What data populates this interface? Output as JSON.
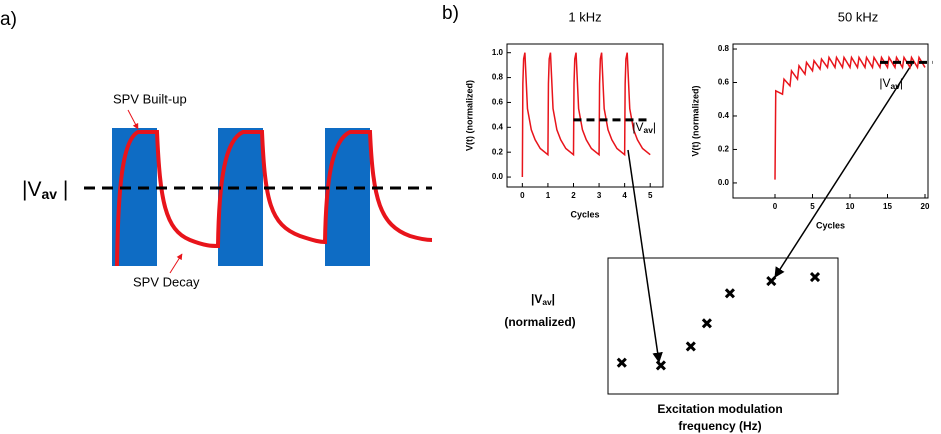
{
  "panel_a": {
    "label": "a)",
    "built_up": "SPV Built-up",
    "decay": "SPV Decay",
    "vav": {
      "text": "|V",
      "sub": "av",
      "end": " |"
    }
  },
  "panel_b_label": "b)",
  "chart_data": [
    {
      "type": "line",
      "title": "1 kHz",
      "x_label": "Cycles",
      "y_label": "V(t) (normalized)",
      "color": "#e8141b",
      "x": [
        0,
        0.02,
        0.05,
        0.1,
        0.2,
        0.35,
        0.5,
        0.7,
        1,
        1.02,
        1.05,
        1.1,
        1.2,
        1.35,
        1.5,
        1.7,
        2,
        2.02,
        2.05,
        2.1,
        2.2,
        2.35,
        2.5,
        2.7,
        3,
        3.02,
        3.05,
        3.1,
        3.2,
        3.35,
        3.5,
        3.7,
        4,
        4.02,
        4.05,
        4.1,
        4.2,
        4.35,
        4.5,
        4.7,
        5
      ],
      "values": [
        0,
        0.75,
        0.95,
        1.0,
        0.55,
        0.38,
        0.3,
        0.23,
        0.18,
        0.75,
        0.95,
        1.0,
        0.55,
        0.38,
        0.3,
        0.23,
        0.18,
        0.75,
        0.95,
        1.0,
        0.55,
        0.38,
        0.3,
        0.23,
        0.18,
        0.75,
        0.95,
        1.0,
        0.55,
        0.38,
        0.3,
        0.23,
        0.18,
        0.75,
        0.95,
        1.0,
        0.55,
        0.38,
        0.3,
        0.23,
        0.18
      ],
      "xlim": [
        -0.6,
        5.5
      ],
      "xticks": [
        0,
        1,
        2,
        3,
        4,
        5
      ],
      "ylim": [
        -0.08,
        1.07
      ],
      "yticks": [
        {
          "value": 0,
          "label": "0.0"
        },
        0.2,
        0.4,
        0.6,
        0.8,
        {
          "value": 1,
          "label": "1.0"
        }
      ],
      "reference_line": {
        "x": [
          2,
          5
        ],
        "y": 0.46,
        "label": {
          "text": "|V",
          "sub": "av",
          "end": "|"
        }
      }
    },
    {
      "type": "line",
      "title": "50 kHz",
      "x_label": "Cycles",
      "y_label": "V(t) (normalized)",
      "color": "#e8141b",
      "x": [
        0,
        0.1,
        1,
        1.2,
        2,
        2.2,
        3,
        3.2,
        4,
        4.2,
        5,
        5.2,
        6,
        6.2,
        7,
        7.2,
        8,
        8.2,
        9,
        9.2,
        10,
        10.2,
        11,
        11.2,
        12,
        12.2,
        13,
        13.2,
        14,
        14.2,
        15,
        15.2,
        16,
        16.2,
        17,
        17.2,
        18,
        18.2,
        19,
        19.2,
        20
      ],
      "values": [
        0.02,
        0.55,
        0.53,
        0.62,
        0.58,
        0.67,
        0.62,
        0.7,
        0.65,
        0.72,
        0.67,
        0.73,
        0.68,
        0.74,
        0.69,
        0.75,
        0.69,
        0.75,
        0.69,
        0.75,
        0.69,
        0.75,
        0.69,
        0.75,
        0.69,
        0.75,
        0.69,
        0.75,
        0.69,
        0.75,
        0.69,
        0.75,
        0.69,
        0.75,
        0.69,
        0.75,
        0.69,
        0.75,
        0.69,
        0.75,
        0.69
      ],
      "xlim": [
        -5.6,
        20.4
      ],
      "xticks": [
        0,
        5,
        10,
        15,
        20
      ],
      "ylim": [
        -0.09,
        0.83
      ],
      "yticks": [
        {
          "value": 0,
          "label": "0.0"
        },
        0.2,
        0.4,
        0.6,
        0.8
      ],
      "reference_line": {
        "x": [
          14,
          21
        ],
        "y": 0.72,
        "label": {
          "text": "|V",
          "sub": "av",
          "end": "|"
        }
      }
    },
    {
      "type": "scatter",
      "y_label": {
        "text": "|V",
        "sub": "av",
        "end": "|",
        "line2": "(normalized)"
      },
      "x_label": [
        "Excitation modulation",
        "frequency (Hz)"
      ],
      "color": "#000000",
      "x": [
        0.6,
        2.3,
        3.6,
        4.3,
        5.3,
        7.1,
        9.0
      ],
      "values": [
        2.3,
        2.1,
        3.5,
        5.2,
        7.4,
        8.3,
        8.6
      ],
      "xlim": [
        0,
        10
      ],
      "ylim": [
        0,
        10
      ]
    }
  ]
}
